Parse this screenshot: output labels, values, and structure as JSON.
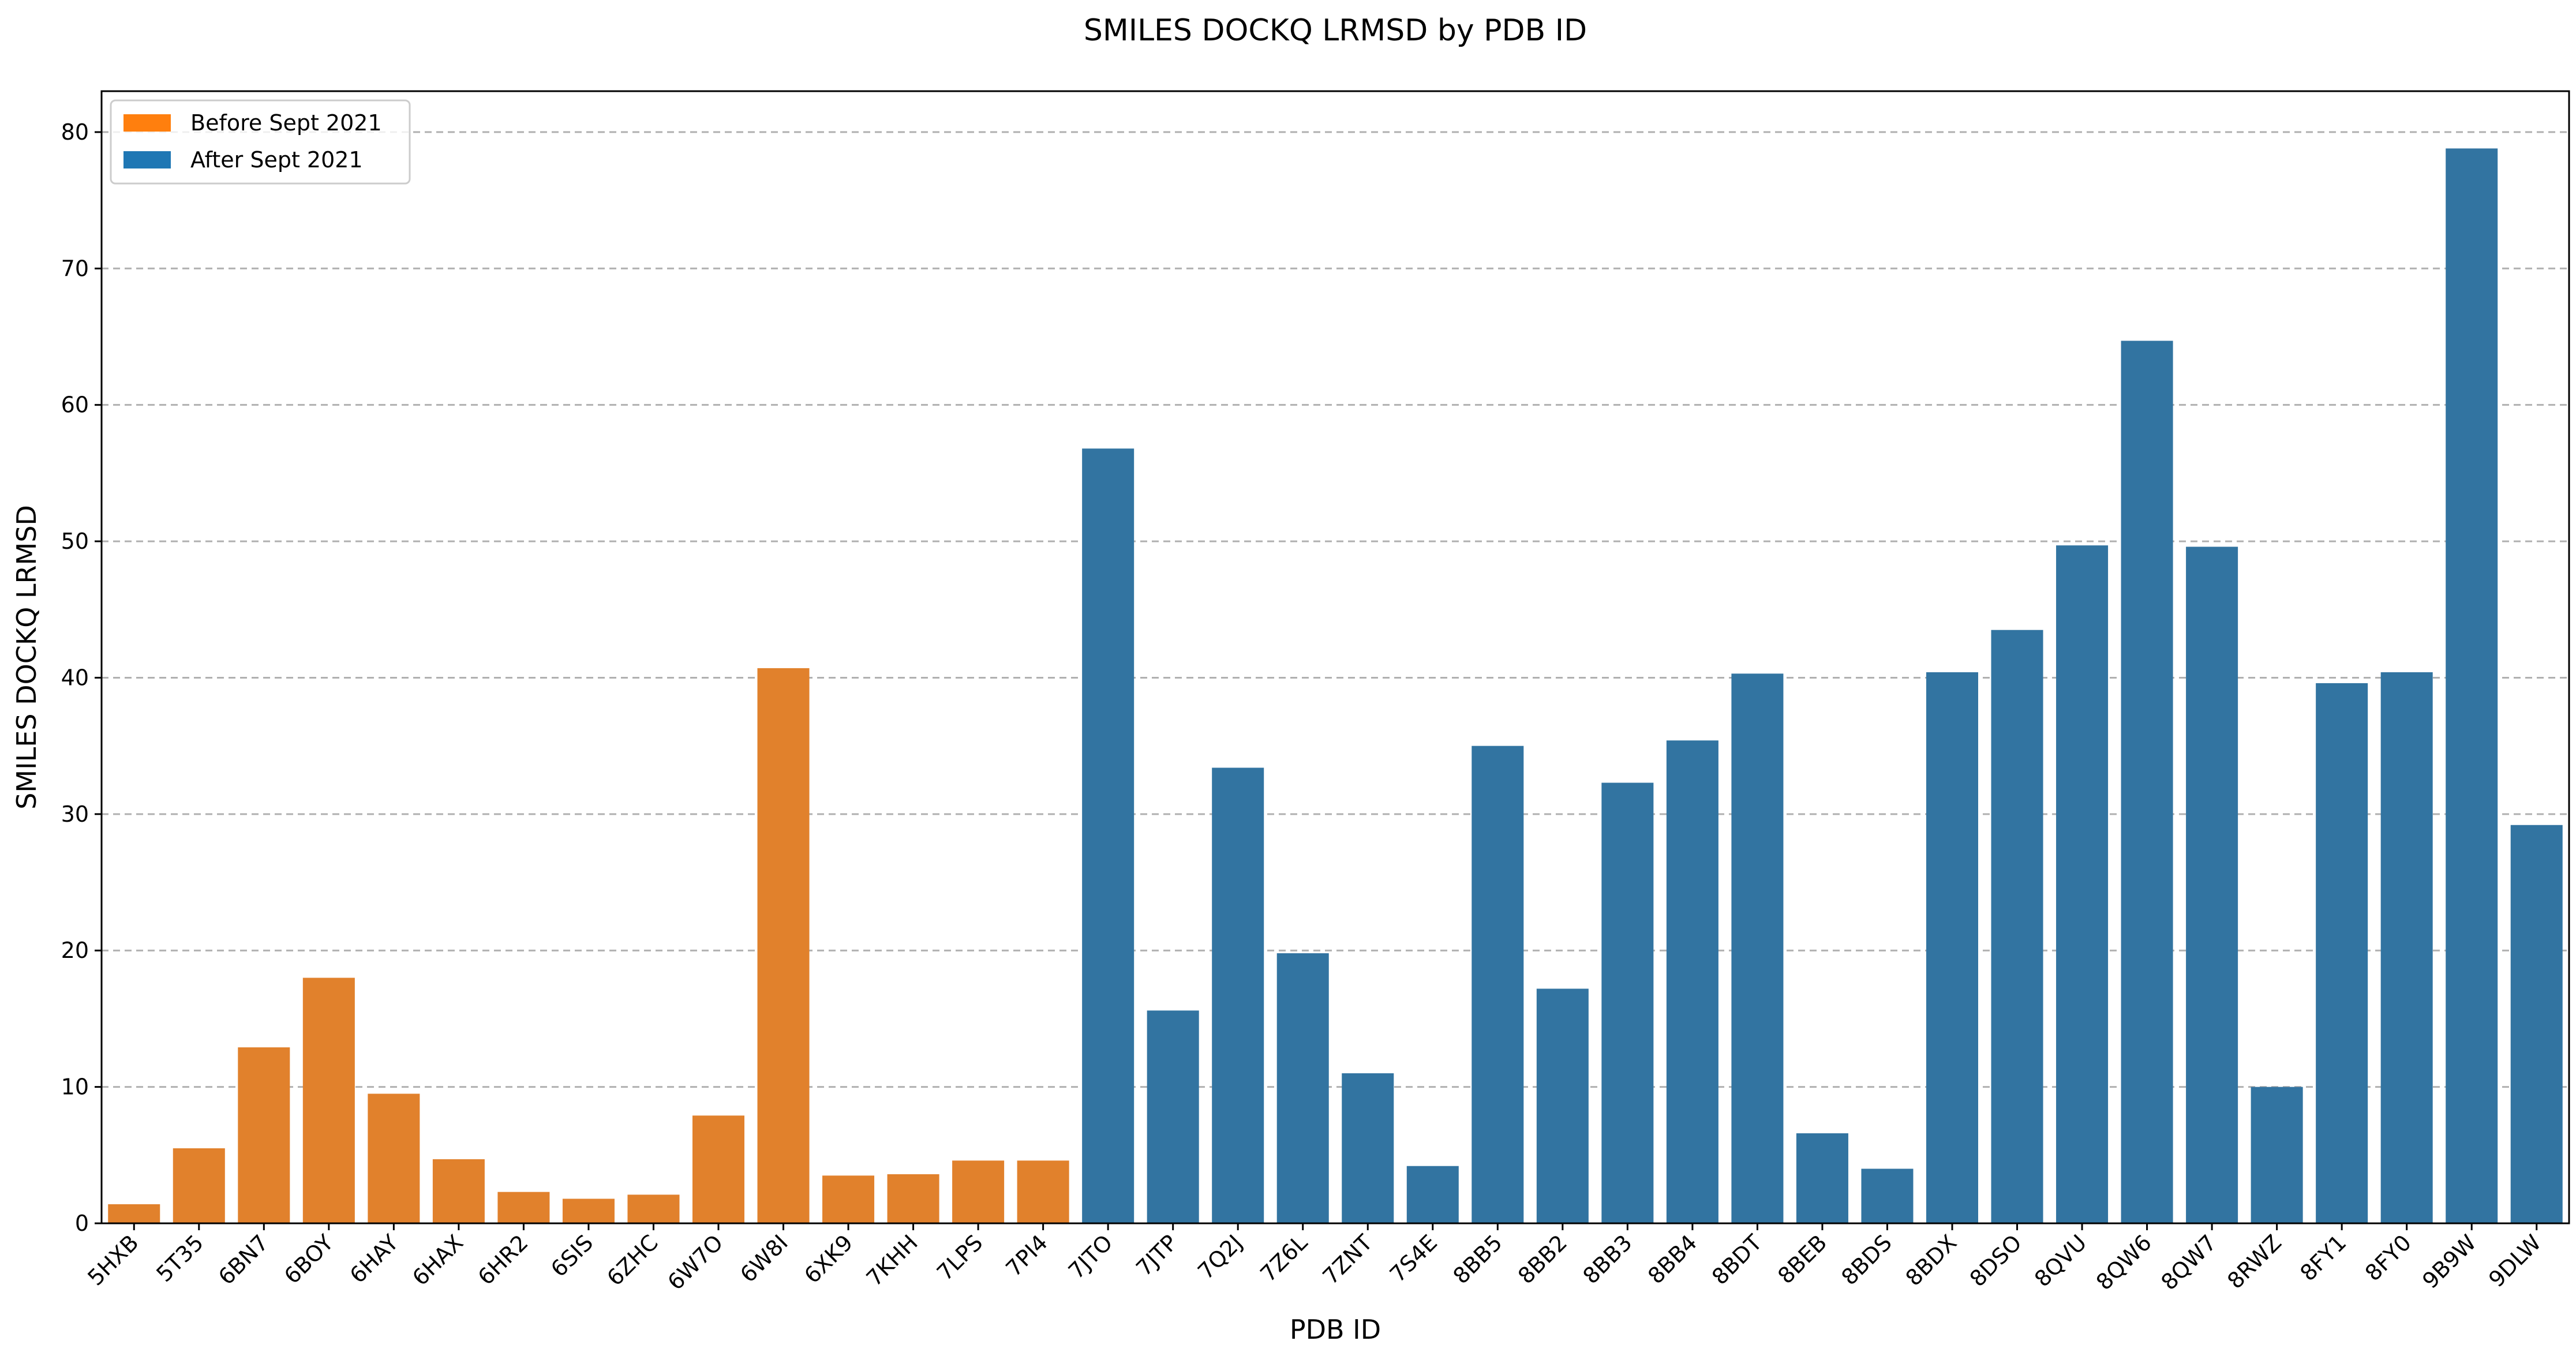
{
  "chart_data": {
    "type": "bar",
    "title": "SMILES DOCKQ LRMSD by PDB ID",
    "xlabel": "PDB ID",
    "ylabel": "SMILES DOCKQ LRMSD",
    "ylim": [
      0,
      83
    ],
    "yticks": [
      0,
      10,
      20,
      30,
      40,
      50,
      60,
      70,
      80
    ],
    "grid": "y-dashed",
    "legend_position": "top-left",
    "legend": [
      {
        "label": "Before Sept 2021",
        "color": "#ff7f0e"
      },
      {
        "label": "After Sept 2021",
        "color": "#1f77b4"
      }
    ],
    "bar_colors": {
      "before": "#e1812c",
      "after": "#3274a1"
    },
    "categories": [
      "5HXB",
      "5T35",
      "6BN7",
      "6BOY",
      "6HAY",
      "6HAX",
      "6HR2",
      "6SIS",
      "6ZHC",
      "6W7O",
      "6W8I",
      "6XK9",
      "7KHH",
      "7LPS",
      "7PI4",
      "7JTO",
      "7JTP",
      "7Q2J",
      "7Z6L",
      "7ZNT",
      "7S4E",
      "8BB5",
      "8BB2",
      "8BB3",
      "8BB4",
      "8BDT",
      "8BEB",
      "8BDS",
      "8BDX",
      "8DSO",
      "8QVU",
      "8QW6",
      "8QW7",
      "8RWZ",
      "8FY1",
      "8FY0",
      "9B9W",
      "9DLW"
    ],
    "values": [
      1.4,
      5.5,
      12.9,
      18.0,
      9.5,
      4.7,
      2.3,
      1.8,
      2.1,
      7.9,
      40.7,
      3.5,
      3.6,
      4.6,
      4.6,
      56.8,
      15.6,
      33.4,
      19.8,
      11.0,
      4.2,
      35.0,
      17.2,
      32.3,
      35.4,
      40.3,
      6.6,
      4.0,
      40.4,
      43.5,
      49.7,
      64.7,
      49.6,
      10.0,
      39.6,
      40.4,
      78.8,
      29.2
    ],
    "group": [
      "before",
      "before",
      "before",
      "before",
      "before",
      "before",
      "before",
      "before",
      "before",
      "before",
      "before",
      "before",
      "before",
      "before",
      "before",
      "after",
      "after",
      "after",
      "after",
      "after",
      "after",
      "after",
      "after",
      "after",
      "after",
      "after",
      "after",
      "after",
      "after",
      "after",
      "after",
      "after",
      "after",
      "after",
      "after",
      "after",
      "after",
      "after"
    ]
  }
}
